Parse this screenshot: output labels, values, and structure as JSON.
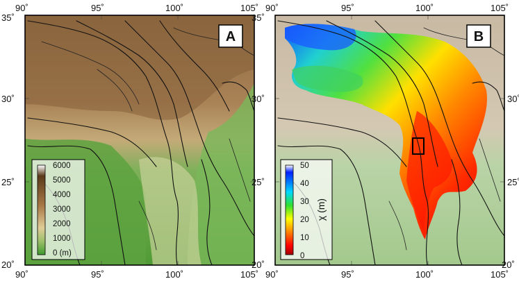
{
  "figure": {
    "panels": [
      {
        "id": "A",
        "label": "A",
        "x_ticks": [
          "90˚",
          "95˚",
          "100˚",
          "105˚"
        ],
        "y_ticks": [
          "35˚",
          "30˚",
          "25˚",
          "20˚"
        ],
        "colorbar": {
          "labels": [
            "6000",
            "5000",
            "4000",
            "3000",
            "2000",
            "1000",
            "0 (m)"
          ],
          "colors": [
            "#ffffff",
            "#5a3a1a",
            "#a87845",
            "#d8c08a",
            "#9cc06a",
            "#3f9a2e"
          ]
        }
      },
      {
        "id": "B",
        "label": "B",
        "x_ticks": [
          "90˚",
          "95˚",
          "100˚",
          "105˚"
        ],
        "y_ticks": [
          "35˚",
          "30˚",
          "25˚",
          "20˚"
        ],
        "colorbar": {
          "title": "χ (m)",
          "labels": [
            "50",
            "40",
            "30",
            "20",
            "10",
            "0"
          ],
          "colors": [
            "#ffffff",
            "#0020ff",
            "#00d8ff",
            "#30e030",
            "#ffff00",
            "#ff8000",
            "#ff0000",
            "#a00000"
          ]
        }
      }
    ]
  }
}
